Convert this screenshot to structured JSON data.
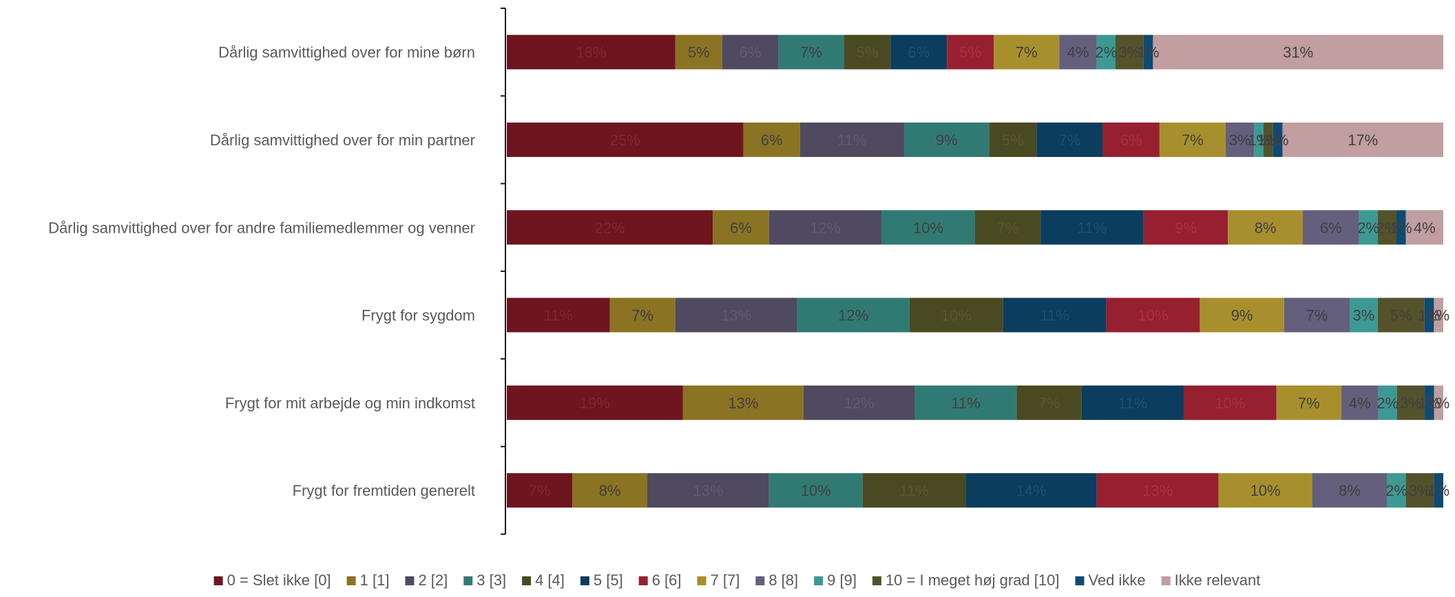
{
  "chart_data": {
    "type": "bar",
    "orientation": "horizontal",
    "stacked": true,
    "normalized": true,
    "grid": false,
    "legend_position": "bottom",
    "categories": [
      "Dårlig samvittighed over for mine børn",
      "Dårlig samvittighed over for min partner",
      "Dårlig samvittighed over for andre familiemedlemmer og venner",
      "Frygt for sygdom",
      "Frygt for mit arbejde og min indkomst",
      "Frygt for fremtiden generelt"
    ],
    "series": [
      {
        "name": "0 = Slet ikke [0]",
        "color": "#6E1520",
        "label_color": "#7D2631",
        "values": [
          18,
          25,
          22,
          11,
          19,
          7
        ],
        "labels": [
          "18%",
          "25%",
          "22%",
          "11%",
          "19%",
          "7%"
        ]
      },
      {
        "name": "1 [1]",
        "color": "#8A7323",
        "label_color": "#404040",
        "values": [
          5,
          6,
          6,
          7,
          13,
          8
        ],
        "labels": [
          "5%",
          "6%",
          "6%",
          "7%",
          "13%",
          "8%"
        ]
      },
      {
        "name": "2 [2]",
        "color": "#4F4A5F",
        "label_color": "#5E596E",
        "values": [
          6,
          11,
          12,
          13,
          12,
          13
        ],
        "labels": [
          "6%",
          "11%",
          "12%",
          "13%",
          "12%",
          "13%"
        ]
      },
      {
        "name": "3 [3]",
        "color": "#317A74",
        "label_color": "#404040",
        "values": [
          7,
          9,
          10,
          12,
          11,
          10
        ],
        "labels": [
          "7%",
          "9%",
          "10%",
          "12%",
          "11%",
          "10%"
        ]
      },
      {
        "name": "4 [4]",
        "color": "#4A4A22",
        "label_color": "#57572E",
        "values": [
          5,
          5,
          7,
          10,
          7,
          11
        ],
        "labels": [
          "5%",
          "5%",
          "7%",
          "10%",
          "7%",
          "11%"
        ]
      },
      {
        "name": "5 [5]",
        "color": "#0B3D5E",
        "label_color": "#1E4E6E",
        "values": [
          6,
          7,
          11,
          11,
          11,
          14
        ],
        "labels": [
          "6%",
          "7%",
          "11%",
          "11%",
          "11%",
          "14%"
        ]
      },
      {
        "name": "6 [6]",
        "color": "#962030",
        "label_color": "#A5303F",
        "values": [
          5,
          6,
          9,
          10,
          10,
          13
        ],
        "labels": [
          "5%",
          "6%",
          "9%",
          "10%",
          "10%",
          "13%"
        ]
      },
      {
        "name": "7 [7]",
        "color": "#A88F2E",
        "label_color": "#404040",
        "values": [
          7,
          7,
          8,
          9,
          7,
          10
        ],
        "labels": [
          "7%",
          "7%",
          "8%",
          "9%",
          "7%",
          "10%"
        ]
      },
      {
        "name": "8 [8]",
        "color": "#635F7D",
        "label_color": "#404040",
        "values": [
          4,
          3,
          6,
          7,
          4,
          8
        ],
        "labels": [
          "4%",
          "3%",
          "6%",
          "7%",
          "4%",
          "8%"
        ]
      },
      {
        "name": "9 [9]",
        "color": "#3C9993",
        "label_color": "#404040",
        "values": [
          2,
          1,
          2,
          3,
          2,
          2
        ],
        "labels": [
          "2%",
          "1%",
          "2%",
          "3%",
          "2%",
          "2%"
        ]
      },
      {
        "name": "10 = I meget høj grad [10]",
        "color": "#53522B",
        "label_color": "#404040",
        "values": [
          3,
          1,
          2,
          5,
          3,
          3
        ],
        "labels": [
          "3%",
          "1%",
          "2%",
          "5%",
          "3%",
          "3%"
        ]
      },
      {
        "name": "Ved ikke",
        "color": "#0E4A73",
        "label_color": "#404040",
        "values": [
          1,
          1,
          1,
          1,
          1,
          1
        ],
        "labels": [
          "1%",
          "1%",
          "1%",
          "1%",
          "1%",
          "1%"
        ]
      },
      {
        "name": "Ikke relevant",
        "color": "#C19EA0",
        "label_color": "#404040",
        "values": [
          31,
          17,
          4,
          1,
          1,
          0
        ],
        "labels": [
          "31%",
          "17%",
          "4%",
          "1%",
          "1%",
          ""
        ]
      }
    ]
  }
}
